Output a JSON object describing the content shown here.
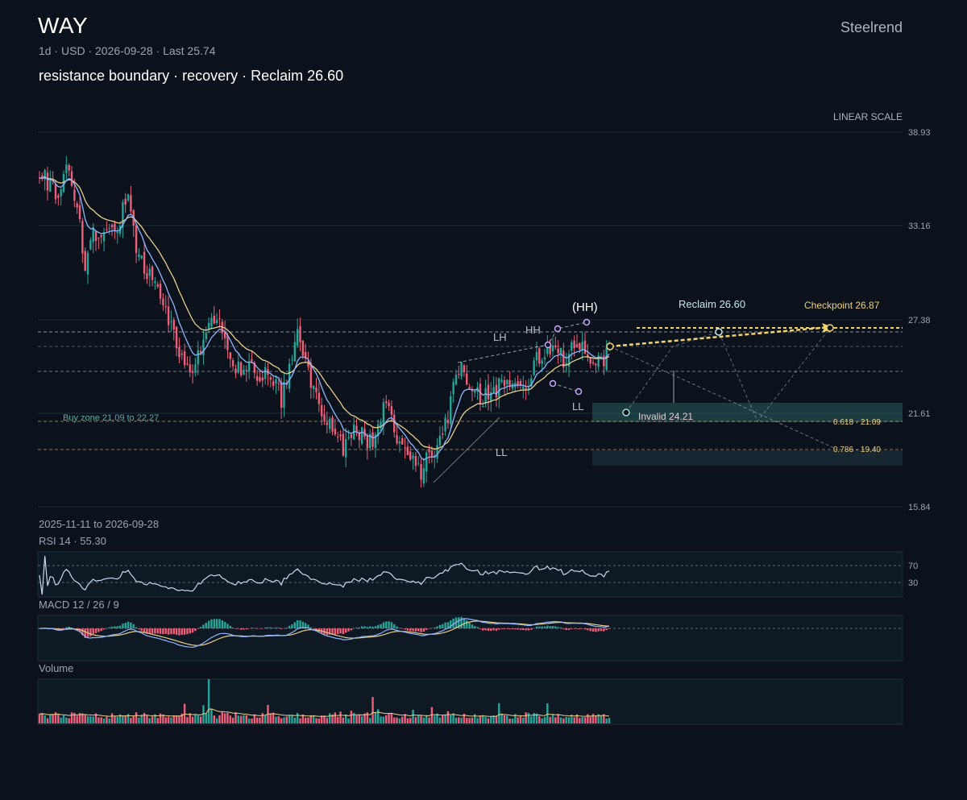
{
  "header": {
    "ticker": "WAY",
    "brand": "Steelrend",
    "meta": "1d · USD · 2026-09-28 · Last 25.74",
    "subtitle": "resistance boundary · recovery · Reclaim 26.60",
    "scale_label": "LINEAR SCALE",
    "date_range": "2025-11-11 to 2026-09-28"
  },
  "colors": {
    "background": "#0b121c",
    "up": "#26a69a",
    "down": "#ef5f7a",
    "ma_fast": "#8fb4ff",
    "ma_slow": "#e8cf8a",
    "accent": "#f2d36b",
    "zone": "#2e6e6a"
  },
  "chart_data": [
    {
      "type": "candlestick",
      "title": "WAY",
      "ylim": [
        15.84,
        38.93
      ],
      "y_ticks": [
        "38.93",
        "33.16",
        "27.38",
        "21.61",
        "15.84"
      ],
      "grid": true,
      "anchors": [
        [
          0,
          36.8
        ],
        [
          6,
          34.9
        ],
        [
          10,
          37.0
        ],
        [
          14,
          34.3
        ],
        [
          17,
          31.0
        ],
        [
          20,
          32.7
        ],
        [
          28,
          32.5
        ],
        [
          33,
          35.2
        ],
        [
          36,
          31.2
        ],
        [
          42,
          29.8
        ],
        [
          50,
          26.2
        ],
        [
          56,
          24.3
        ],
        [
          60,
          25.8
        ],
        [
          66,
          27.5
        ],
        [
          72,
          24.5
        ],
        [
          84,
          24.0
        ],
        [
          90,
          22.5
        ],
        [
          96,
          26.5
        ],
        [
          100,
          24.0
        ],
        [
          106,
          21.5
        ],
        [
          112,
          19.5
        ],
        [
          118,
          20.5
        ],
        [
          124,
          19.9
        ],
        [
          128,
          22.1
        ],
        [
          134,
          19.9
        ],
        [
          142,
          18.2
        ],
        [
          146,
          19.2
        ],
        [
          152,
          21.5
        ],
        [
          156,
          24.5
        ],
        [
          164,
          22.5
        ],
        [
          172,
          23.2
        ],
        [
          178,
          24.0
        ],
        [
          182,
          23.5
        ],
        [
          186,
          25.2
        ],
        [
          192,
          25.8
        ],
        [
          196,
          24.6
        ],
        [
          200,
          26.1
        ],
        [
          206,
          24.2
        ],
        [
          212,
          25.3
        ]
      ],
      "annotations": {
        "hh_paren": "(HH)",
        "hh": "HH",
        "lh": "LH",
        "ll": "LL",
        "ll_low": "LL",
        "reclaim": "Reclaim 26.60",
        "checkpoint": "Checkpoint 26.87",
        "invalid": "Invalid 24.21",
        "buy_zone": "Buy zone 21.09 to 22.27",
        "fib_618": "0.618 · 21.09",
        "fib_786": "0.786 · 19.40"
      },
      "levels": {
        "reclaim": 26.6,
        "checkpoint": 26.87,
        "invalid": 24.21,
        "buy_zone": [
          21.09,
          22.27
        ],
        "fib_618": 21.09,
        "fib_786": 19.4,
        "lower_zone": [
          18.2,
          19.2
        ],
        "dashed": [
          26.8,
          25.4,
          24.2,
          21.09,
          19.4
        ]
      }
    },
    {
      "type": "line",
      "title": "RSI 14 · 55.30",
      "levels": [
        "70",
        "30"
      ],
      "last": 55.3
    },
    {
      "type": "line",
      "title": "MACD 12 / 26 / 9",
      "params": [
        12,
        26,
        9
      ]
    },
    {
      "type": "bar",
      "title": "Volume"
    }
  ]
}
